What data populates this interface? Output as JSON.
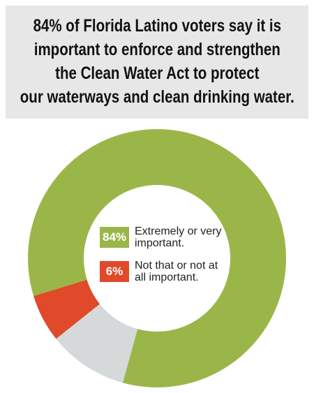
{
  "chart_data": {
    "type": "donut",
    "title": [
      "84% of Florida Latino voters say it is",
      "important to enforce and strengthen",
      "the Clean Water Act to protect",
      "our waterways and clean drinking water."
    ],
    "categories": [
      "Extremely or very important.",
      "Not that or not at all important.",
      null
    ],
    "values": [
      84,
      6,
      10
    ],
    "value_labels": [
      "84%",
      "6%",
      null
    ],
    "colors": [
      "#9bb648",
      "#e0492a",
      "#d5d9da"
    ]
  }
}
